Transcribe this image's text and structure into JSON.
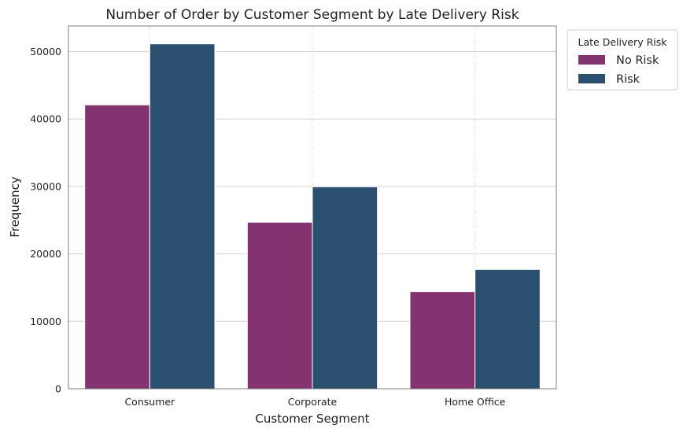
{
  "chart_data": {
    "type": "bar",
    "title": "Number of Order by Customer Segment by Late Delivery Risk",
    "xlabel": "Customer Segment",
    "ylabel": "Frequency",
    "categories": [
      "Consumer",
      "Corporate",
      "Home Office"
    ],
    "series": [
      {
        "name": "No Risk",
        "color": "#833370",
        "values": [
          42100,
          24700,
          14400
        ]
      },
      {
        "name": "Risk",
        "color": "#2b506f",
        "values": [
          51150,
          29950,
          17700
        ]
      }
    ],
    "ylim": [
      0,
      53800
    ],
    "yticks": [
      0,
      10000,
      20000,
      30000,
      40000,
      50000
    ],
    "legend": {
      "title": "Late Delivery Risk",
      "placement": "outside-top-right"
    },
    "grid": true
  }
}
